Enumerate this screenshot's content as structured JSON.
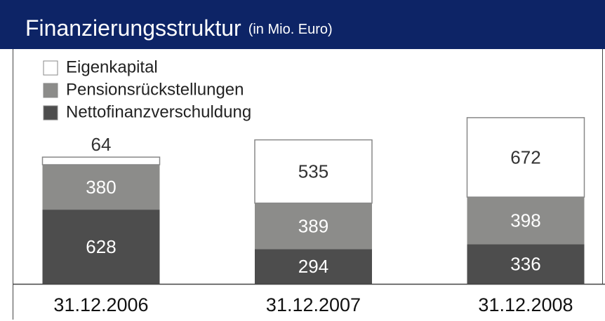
{
  "chart_data": {
    "type": "stacked_bar",
    "title": "Finanzierungsstruktur",
    "subtitle": "(in Mio. Euro)",
    "categories": [
      "31.12.2006",
      "31.12.2007",
      "31.12.2008"
    ],
    "series": [
      {
        "name": "Eigenkapital",
        "color": "#ffffff",
        "values": [
          64,
          535,
          672
        ]
      },
      {
        "name": "Pensionsrückstellungen",
        "color": "#8c8c8a",
        "values": [
          380,
          389,
          398
        ]
      },
      {
        "name": "Nettofinanzverschuldung",
        "color": "#4d4d4d",
        "values": [
          628,
          294,
          336
        ]
      }
    ],
    "ylim": [
      0,
      1500
    ],
    "legend": "top-left"
  }
}
